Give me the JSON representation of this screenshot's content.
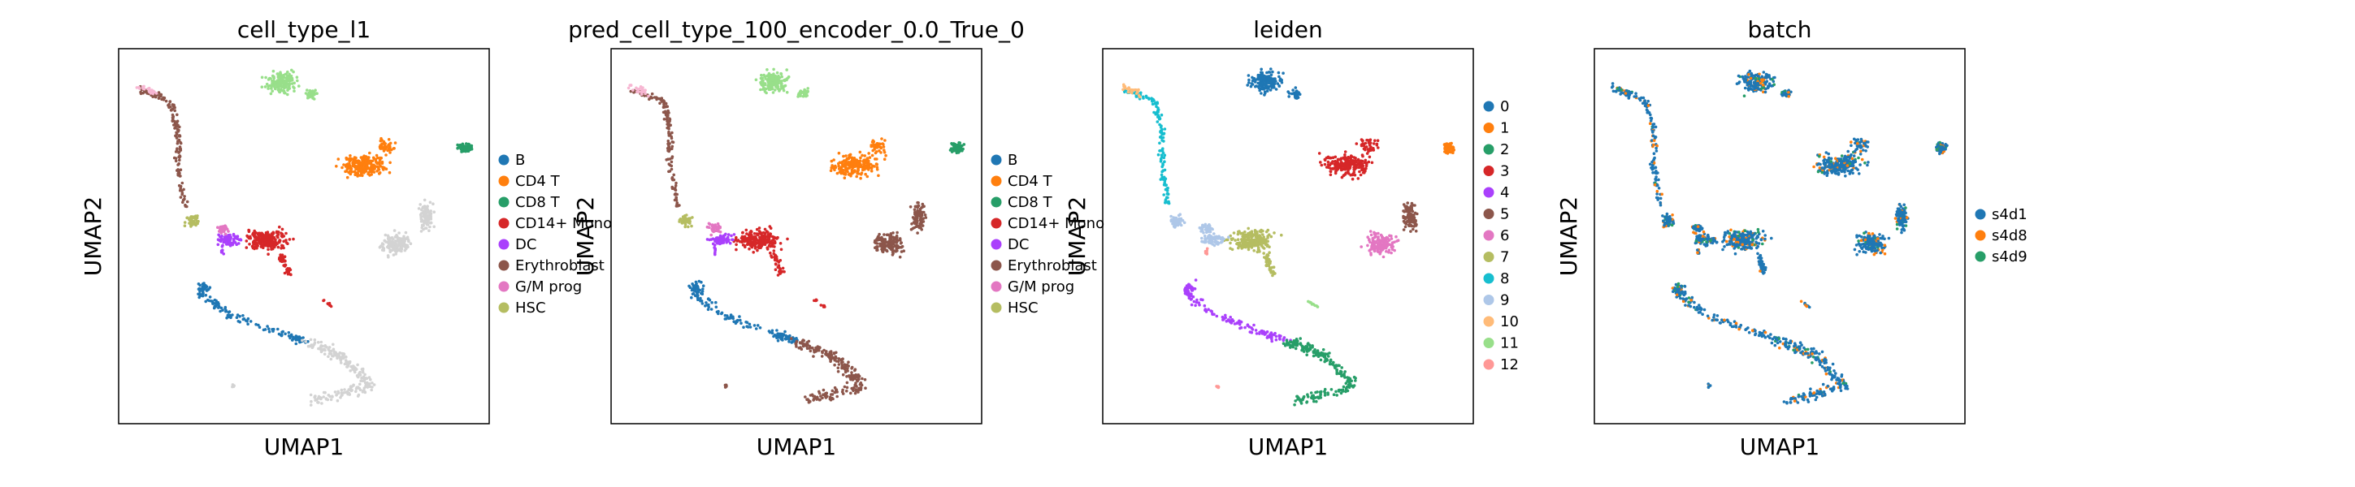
{
  "chart_data": [
    {
      "type": "scatter",
      "title": "cell_type_l1",
      "xlabel": "UMAP1",
      "ylabel": "UMAP2",
      "grid": false,
      "legend_position": "right",
      "legend": [
        {
          "label": "B",
          "color": "#1f77b4"
        },
        {
          "label": "CD4 T",
          "color": "#ff7f0e"
        },
        {
          "label": "CD8 T",
          "color": "#279e68"
        },
        {
          "label": "CD14+ Mono",
          "color": "#d62728"
        },
        {
          "label": "DC",
          "color": "#aa40fc"
        },
        {
          "label": "Erythroblast",
          "color": "#8c564b"
        },
        {
          "label": "G/M prog",
          "color": "#e377c2"
        },
        {
          "label": "HSC",
          "color": "#b5bd61"
        }
      ]
    },
    {
      "type": "scatter",
      "title": "pred_cell_type_100_encoder_0.0_True_0",
      "xlabel": "UMAP1",
      "ylabel": "UMAP2",
      "grid": false,
      "legend_position": "right",
      "legend": [
        {
          "label": "B",
          "color": "#1f77b4"
        },
        {
          "label": "CD4 T",
          "color": "#ff7f0e"
        },
        {
          "label": "CD8 T",
          "color": "#279e68"
        },
        {
          "label": "CD14+ Mono",
          "color": "#d62728"
        },
        {
          "label": "DC",
          "color": "#aa40fc"
        },
        {
          "label": "Erythroblast",
          "color": "#8c564b"
        },
        {
          "label": "G/M prog",
          "color": "#e377c2"
        },
        {
          "label": "HSC",
          "color": "#b5bd61"
        }
      ]
    },
    {
      "type": "scatter",
      "title": "leiden",
      "xlabel": "UMAP1",
      "ylabel": "UMAP2",
      "grid": false,
      "legend_position": "right",
      "legend": [
        {
          "label": "0",
          "color": "#1f77b4"
        },
        {
          "label": "1",
          "color": "#ff7f0e"
        },
        {
          "label": "2",
          "color": "#279e68"
        },
        {
          "label": "3",
          "color": "#d62728"
        },
        {
          "label": "4",
          "color": "#aa40fc"
        },
        {
          "label": "5",
          "color": "#8c564b"
        },
        {
          "label": "6",
          "color": "#e377c2"
        },
        {
          "label": "7",
          "color": "#b5bd61"
        },
        {
          "label": "8",
          "color": "#17becf"
        },
        {
          "label": "9",
          "color": "#aec7e8"
        },
        {
          "label": "10",
          "color": "#ffbb78"
        },
        {
          "label": "11",
          "color": "#98df8a"
        },
        {
          "label": "12",
          "color": "#ff9896"
        }
      ]
    },
    {
      "type": "scatter",
      "title": "batch",
      "xlabel": "UMAP1",
      "ylabel": "UMAP2",
      "grid": false,
      "legend_position": "right",
      "legend": [
        {
          "label": "s4d1",
          "color": "#1f77b4"
        },
        {
          "label": "s4d8",
          "color": "#ff7f0e"
        },
        {
          "label": "s4d9",
          "color": "#279e68"
        }
      ]
    }
  ]
}
